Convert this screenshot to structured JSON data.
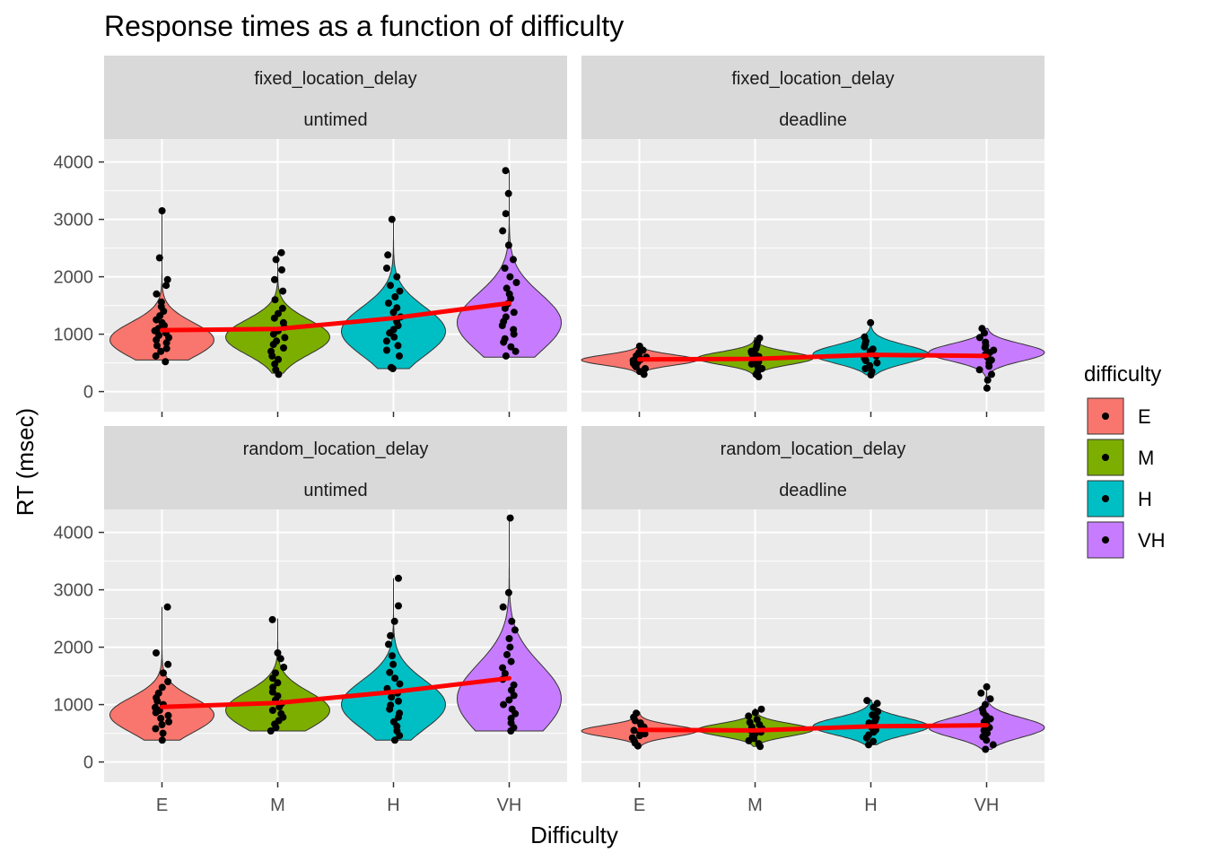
{
  "chart_data": {
    "type": "violin",
    "title": "Response times as a function of difficulty",
    "xlabel": "Difficulty",
    "ylabel": "RT (msec)",
    "categories": [
      "E",
      "M",
      "H",
      "VH"
    ],
    "y_ticks": [
      0,
      1000,
      2000,
      3000,
      4000
    ],
    "ylim": [
      -350,
      4400
    ],
    "grid": true,
    "legend": {
      "title": "difficulty",
      "position": "right",
      "items": [
        "E",
        "M",
        "H",
        "VH"
      ],
      "colors": [
        "#F8766D",
        "#7CAE00",
        "#00BFC4",
        "#C77CFF"
      ]
    },
    "trend_color": "#FF0000",
    "panels": [
      {
        "row_label": "fixed_location_delay",
        "col_label": "untimed",
        "violins": [
          {
            "category": "E",
            "min": 550,
            "max": 3150,
            "mode": 900,
            "spread": 300,
            "width": 0.9
          },
          {
            "category": "M",
            "min": 320,
            "max": 2430,
            "mode": 950,
            "spread": 300,
            "width": 0.9
          },
          {
            "category": "H",
            "min": 400,
            "max": 3010,
            "mode": 1050,
            "spread": 420,
            "width": 0.9
          },
          {
            "category": "VH",
            "min": 600,
            "max": 3850,
            "mode": 1200,
            "spread": 500,
            "width": 0.9
          }
        ],
        "trend": [
          1070,
          1090,
          1280,
          1540
        ],
        "points": [
          [
            520,
            620,
            700,
            750,
            800,
            850,
            900,
            940,
            980,
            1020,
            1060,
            1100,
            1150,
            1200,
            1250,
            1320,
            1400,
            1480,
            1560,
            1700,
            1850,
            1950,
            2330,
            3150
          ],
          [
            300,
            380,
            480,
            560,
            620,
            700,
            760,
            820,
            880,
            940,
            1000,
            1060,
            1120,
            1200,
            1280,
            1360,
            1450,
            1600,
            1750,
            1950,
            2120,
            2300,
            2420
          ],
          [
            400,
            420,
            620,
            720,
            800,
            880,
            950,
            1020,
            1080,
            1150,
            1220,
            1300,
            1380,
            1460,
            1540,
            1650,
            1750,
            1850,
            2000,
            2150,
            2380,
            3000
          ],
          [
            620,
            700,
            780,
            860,
            920,
            1000,
            1080,
            1150,
            1220,
            1300,
            1380,
            1450,
            1530,
            1620,
            1700,
            1800,
            1900,
            2000,
            2150,
            2300,
            2550,
            2800,
            3100,
            3450,
            3850
          ]
        ]
      },
      {
        "row_label": "fixed_location_delay",
        "col_label": "deadline",
        "violins": [
          {
            "category": "E",
            "min": 300,
            "max": 790,
            "mode": 550,
            "spread": 90,
            "width": 1.0
          },
          {
            "category": "M",
            "min": 260,
            "max": 940,
            "mode": 580,
            "spread": 110,
            "width": 1.0
          },
          {
            "category": "H",
            "min": 290,
            "max": 1210,
            "mode": 650,
            "spread": 160,
            "width": 1.0
          },
          {
            "category": "VH",
            "min": 60,
            "max": 1100,
            "mode": 680,
            "spread": 150,
            "width": 1.0
          }
        ],
        "trend": [
          560,
          570,
          640,
          620
        ],
        "points": [
          [
            300,
            350,
            400,
            430,
            460,
            490,
            510,
            540,
            560,
            580,
            600,
            620,
            650,
            680,
            720,
            790
          ],
          [
            260,
            300,
            350,
            400,
            440,
            480,
            520,
            550,
            580,
            610,
            640,
            670,
            700,
            750,
            800,
            860,
            930
          ],
          [
            290,
            350,
            400,
            450,
            500,
            540,
            580,
            620,
            660,
            700,
            740,
            780,
            830,
            880,
            950,
            1200
          ],
          [
            60,
            200,
            300,
            380,
            440,
            500,
            550,
            600,
            640,
            680,
            720,
            760,
            800,
            860,
            940,
            1020,
            1100
          ]
        ]
      },
      {
        "row_label": "random_location_delay",
        "col_label": "untimed",
        "violins": [
          {
            "category": "E",
            "min": 380,
            "max": 2700,
            "mode": 820,
            "spread": 300,
            "width": 0.9
          },
          {
            "category": "M",
            "min": 540,
            "max": 2500,
            "mode": 900,
            "spread": 320,
            "width": 0.9
          },
          {
            "category": "H",
            "min": 380,
            "max": 3200,
            "mode": 1000,
            "spread": 420,
            "width": 0.9
          },
          {
            "category": "VH",
            "min": 540,
            "max": 4280,
            "mode": 1100,
            "spread": 600,
            "width": 0.9
          }
        ],
        "trend": [
          960,
          1030,
          1220,
          1460
        ],
        "points": [
          [
            380,
            500,
            580,
            650,
            700,
            760,
            810,
            860,
            900,
            950,
            1000,
            1060,
            1120,
            1200,
            1300,
            1400,
            1550,
            1700,
            1900,
            2700
          ],
          [
            540,
            600,
            660,
            720,
            780,
            840,
            900,
            960,
            1020,
            1080,
            1150,
            1220,
            1300,
            1380,
            1460,
            1550,
            1650,
            1800,
            1900,
            2480
          ],
          [
            380,
            460,
            540,
            620,
            700,
            780,
            850,
            920,
            990,
            1060,
            1130,
            1200,
            1280,
            1360,
            1460,
            1560,
            1700,
            1850,
            2050,
            2200,
            2450,
            2720,
            3200
          ],
          [
            540,
            600,
            680,
            760,
            840,
            920,
            1000,
            1080,
            1160,
            1250,
            1340,
            1440,
            1540,
            1640,
            1750,
            1870,
            2000,
            2150,
            2300,
            2450,
            2700,
            2950,
            4250
          ]
        ]
      },
      {
        "row_label": "random_location_delay",
        "col_label": "deadline",
        "violins": [
          {
            "category": "E",
            "min": 280,
            "max": 870,
            "mode": 540,
            "spread": 100,
            "width": 1.0
          },
          {
            "category": "M",
            "min": 270,
            "max": 930,
            "mode": 560,
            "spread": 110,
            "width": 1.0
          },
          {
            "category": "H",
            "min": 300,
            "max": 1080,
            "mode": 620,
            "spread": 150,
            "width": 1.0
          },
          {
            "category": "VH",
            "min": 220,
            "max": 1320,
            "mode": 600,
            "spread": 170,
            "width": 1.0
          }
        ],
        "trend": [
          560,
          550,
          620,
          640
        ],
        "points": [
          [
            280,
            330,
            380,
            420,
            460,
            490,
            520,
            550,
            580,
            610,
            640,
            680,
            720,
            780,
            850
          ],
          [
            270,
            320,
            370,
            410,
            450,
            490,
            520,
            550,
            580,
            610,
            650,
            690,
            740,
            800,
            860,
            920
          ],
          [
            300,
            360,
            420,
            470,
            520,
            560,
            600,
            640,
            680,
            720,
            770,
            820,
            880,
            950,
            1020,
            1070
          ],
          [
            220,
            300,
            380,
            440,
            500,
            550,
            600,
            650,
            700,
            750,
            800,
            860,
            920,
            1000,
            1100,
            1200,
            1310
          ]
        ]
      }
    ]
  }
}
